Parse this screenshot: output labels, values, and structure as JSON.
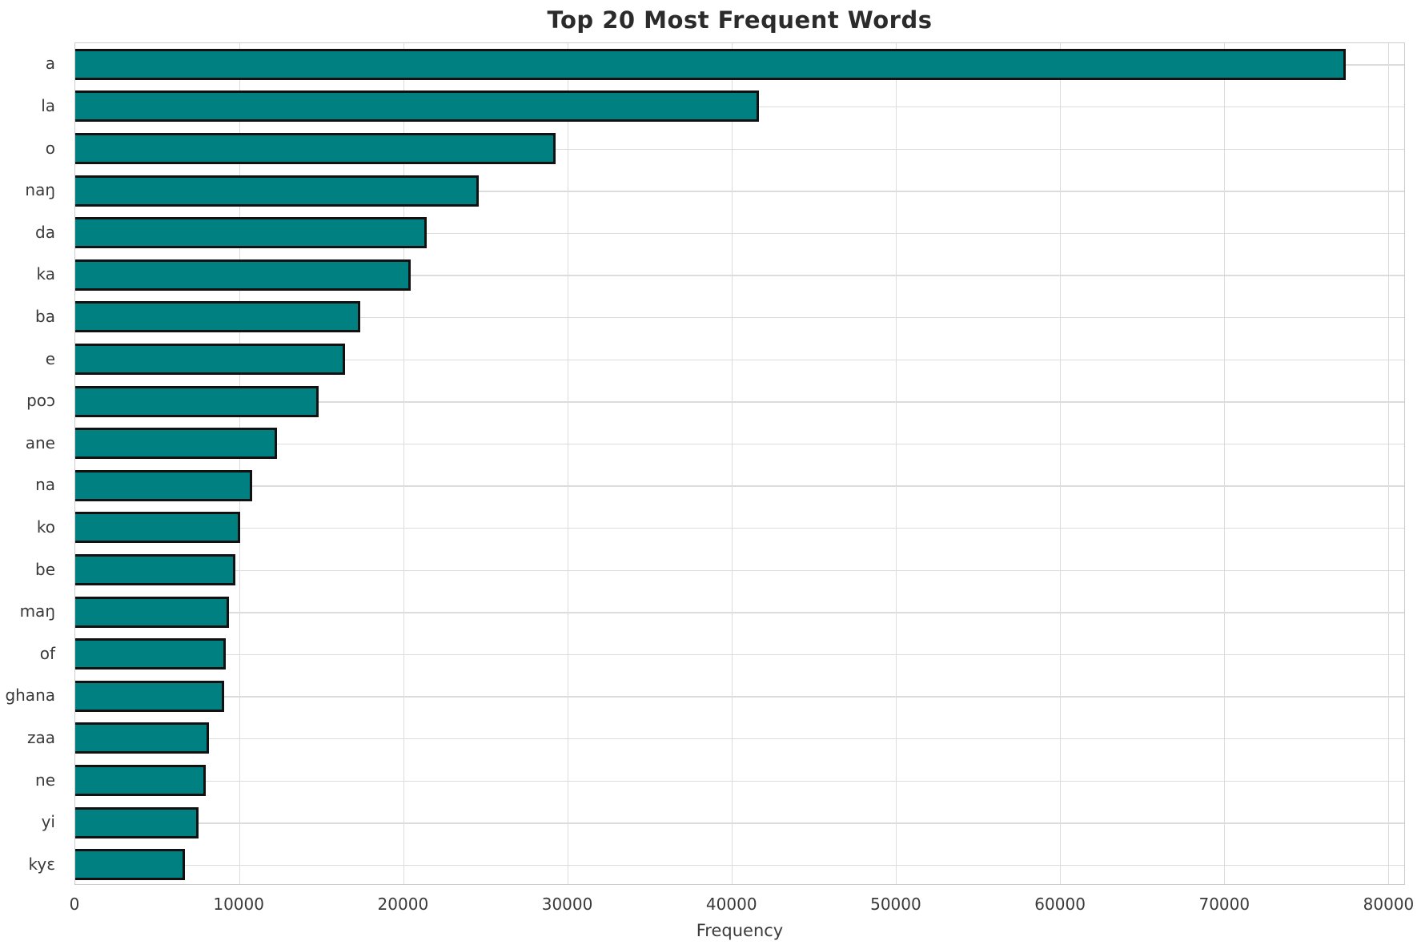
{
  "chart_data": {
    "type": "bar",
    "orientation": "horizontal",
    "title": "Top 20 Most Frequent Words",
    "xlabel": "Frequency",
    "ylabel": "",
    "categories": [
      "a",
      "la",
      "o",
      "naŋ",
      "da",
      "ka",
      "ba",
      "e",
      "poɔ",
      "ane",
      "na",
      "ko",
      "be",
      "maŋ",
      "of",
      "ghana",
      "zaa",
      "ne",
      "yi",
      "kyɛ"
    ],
    "values": [
      77450,
      41650,
      29270,
      24590,
      21410,
      20440,
      17370,
      16440,
      14830,
      12290,
      10780,
      10050,
      9760,
      9370,
      9170,
      9070,
      8150,
      7950,
      7510,
      6680
    ],
    "xlim": [
      0,
      81000
    ],
    "xticks": [
      0,
      10000,
      20000,
      30000,
      40000,
      50000,
      60000,
      70000,
      80000
    ],
    "grid": "both",
    "legend": "none",
    "bar_color": "#008080",
    "bar_edge_color": "#111111",
    "background_color": "#ffffff",
    "grid_color": "#dcdcdc"
  }
}
